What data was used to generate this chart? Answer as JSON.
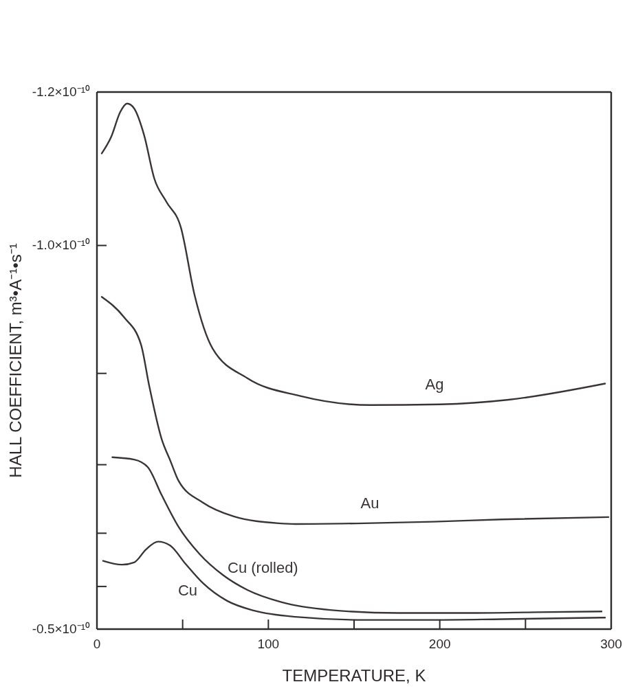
{
  "chart_data": {
    "type": "line",
    "xlabel": "TEMPERATURE, K",
    "ylabel": "HALL COEFFICIENT, m³•A⁻¹•s⁻¹",
    "xlim": [
      0,
      300
    ],
    "xticks": [
      0,
      {
        "value": 50,
        "label": null
      },
      100,
      {
        "value": 150,
        "label": null
      },
      200,
      {
        "value": 250,
        "label": null
      },
      300
    ],
    "ylim": [
      -5e-11,
      -1.2e-10
    ],
    "yticks": [
      {
        "value": -1.2e-10,
        "label": "-1.2×10⁻¹⁰"
      },
      {
        "value": -1e-10,
        "label": "-1.0×10⁻¹⁰"
      },
      {
        "value": -8.333e-11,
        "label": null
      },
      {
        "value": -7.143e-11,
        "label": null
      },
      {
        "value": -6.25e-11,
        "label": null
      },
      {
        "value": -5.556e-11,
        "label": null
      },
      {
        "value": -5e-11,
        "label": "-0.5×10⁻¹⁰"
      }
    ],
    "grid": false,
    "legend": false,
    "series": [
      {
        "name": "Ag",
        "color": "#3a3436",
        "x": [
          2.8,
          8.4,
          13.6,
          17.6,
          21.6,
          27.5,
          33.5,
          40.5,
          48.9,
          57.0,
          67.4,
          87.8,
          118.3,
          159.2,
          200.1,
          240.2,
          296.4
        ],
        "values": [
          -1.12e-10,
          -1.142e-10,
          -1.174e-10,
          -1.185e-10,
          -1.179e-10,
          -1.144e-10,
          -1.087e-10,
          -1.057e-10,
          -1.024e-10,
          -9.35e-11,
          -8.66e-11,
          -8.27e-11,
          -8.04e-11,
          -7.92e-11,
          -7.93e-11,
          -7.99e-11,
          -8.2e-11
        ]
      },
      {
        "name": "Au",
        "color": "#3a3436",
        "x": [
          2.8,
          15.6,
          25.7,
          30.5,
          37.7,
          42.9,
          47.7,
          61.8,
          79.8,
          105.9,
          115.9,
          156,
          196.1,
          236.2,
          298.4
        ],
        "values": [
          -9.33e-11,
          -9.07e-11,
          -8.71e-11,
          -8.17e-11,
          -7.48e-11,
          -7.19e-11,
          -6.93e-11,
          -6.65e-11,
          -6.47e-11,
          -6.38e-11,
          -6.37e-11,
          -6.38e-11,
          -6.4e-11,
          -6.43e-11,
          -6.46e-11
        ]
      },
      {
        "name": "Cu (rolled)",
        "color": "#3a3436",
        "x": [
          9.0,
          21.7,
          29.7,
          37.7,
          47.7,
          59.8,
          73.8,
          87.8,
          107.9,
          136.0,
          176,
          216.2,
          256.3,
          294.4
        ],
        "values": [
          -7.24e-11,
          -7.21e-11,
          -7.11e-11,
          -6.75e-11,
          -6.33e-11,
          -5.98e-11,
          -5.7e-11,
          -5.51e-11,
          -5.35e-11,
          -5.25e-11,
          -5.21e-11,
          -5.21e-11,
          -5.22e-11,
          -5.23e-11
        ]
      },
      {
        "name": "Cu",
        "color": "#3a3436",
        "x": [
          3.6,
          14.6,
          21.7,
          28.7,
          35.7,
          42.7,
          51.7,
          61.8,
          75.8,
          91.8,
          115.9,
          156,
          196.1,
          236.2,
          296.4
        ],
        "values": [
          -5.89e-11,
          -5.84e-11,
          -5.87e-11,
          -6.04e-11,
          -6.14e-11,
          -6.09e-11,
          -5.85e-11,
          -5.6e-11,
          -5.37e-11,
          -5.24e-11,
          -5.16e-11,
          -5.12e-11,
          -5.12e-11,
          -5.13e-11,
          -5.15e-11
        ]
      }
    ]
  }
}
